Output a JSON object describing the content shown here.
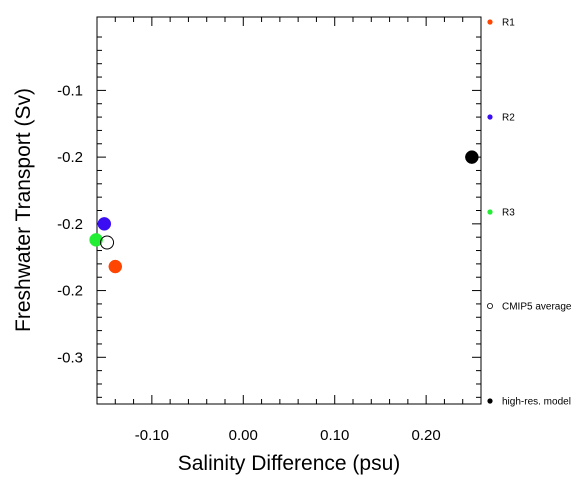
{
  "chart_data": {
    "type": "scatter",
    "xlabel": "Salinity Difference (psu)",
    "ylabel": "Freshwater Transport (Sv)",
    "xlim": [
      -0.16,
      0.26
    ],
    "ylim": [
      -0.335,
      -0.045
    ],
    "xticks": [
      -0.1,
      0.0,
      0.1,
      0.2
    ],
    "xtick_labels": [
      "-0.10",
      "0.00",
      "0.10",
      "0.20"
    ],
    "yticks": [
      -0.1,
      -0.15,
      -0.2,
      -0.25,
      -0.3
    ],
    "ytick_labels": [
      "-0.1",
      "-0.2",
      "-0.2",
      "-0.2",
      "-0.3"
    ],
    "grid": false,
    "legend_position": "right",
    "series": [
      {
        "name": "R1",
        "color": "#ff4500",
        "filled": true,
        "x": [
          -0.14
        ],
        "y": [
          -0.232
        ]
      },
      {
        "name": "R2",
        "color": "#3a0df2",
        "filled": true,
        "x": [
          -0.152
        ],
        "y": [
          -0.2
        ]
      },
      {
        "name": "R3",
        "color": "#22ee33",
        "filled": true,
        "x": [
          -0.161
        ],
        "y": [
          -0.212
        ]
      },
      {
        "name": "CMIP5 average",
        "color": "#000000",
        "filled": false,
        "x": [
          -0.149
        ],
        "y": [
          -0.214
        ]
      },
      {
        "name": "high-res. model",
        "color": "#000000",
        "filled": true,
        "x": [
          0.25
        ],
        "y": [
          -0.15
        ]
      }
    ]
  }
}
